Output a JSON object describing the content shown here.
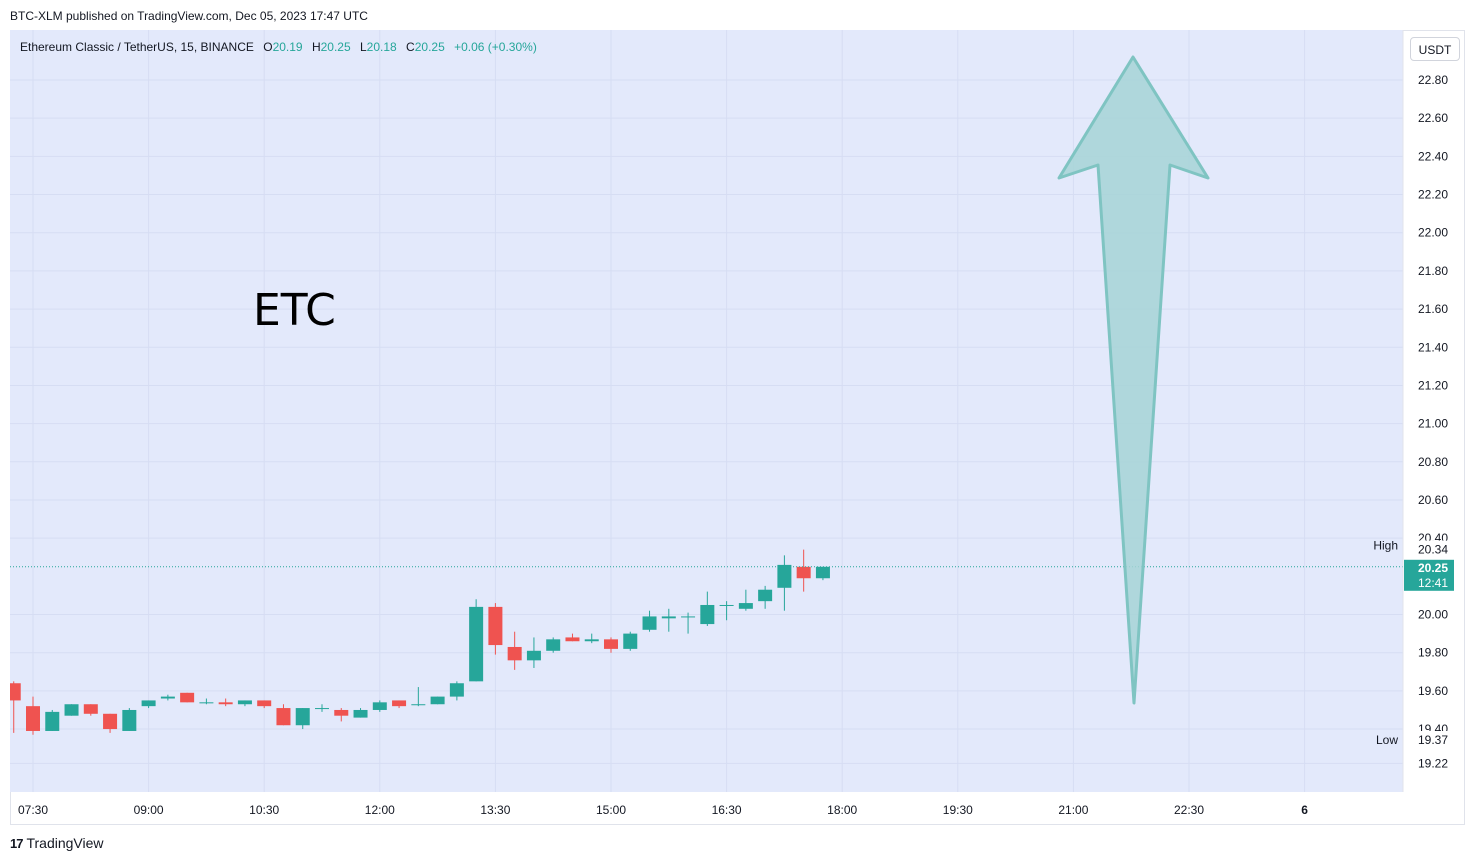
{
  "header": {
    "published_text": "BTC-XLM published on TradingView.com, Dec 05, 2023 17:47 UTC"
  },
  "legend": {
    "symbol_text": "Ethereum Classic / TetherUS, 15, BINANCE",
    "o_label": "O",
    "o_value": "20.19",
    "h_label": "H",
    "h_value": "20.25",
    "l_label": "L",
    "l_value": "20.18",
    "c_label": "C",
    "c_value": "20.25",
    "change_text": "+0.06 (+0.30%)"
  },
  "currency_button": {
    "label": "USDT"
  },
  "annotation": {
    "text": "ETC"
  },
  "footer": {
    "brand_label": "TradingView",
    "logo_glyph": "17"
  },
  "colors": {
    "up": "#26a69a",
    "down": "#ef5350",
    "plot_bg": "#e3e9fb",
    "arrow_fill": "#a6d3d6",
    "arrow_stroke": "#7fc4c2",
    "price_line": "#26a69a"
  },
  "chart_data": {
    "type": "candlestick",
    "timeframe": "15",
    "y_axis_ticks": [
      "22.80",
      "22.60",
      "22.40",
      "22.20",
      "22.00",
      "21.80",
      "21.60",
      "21.40",
      "21.20",
      "21.00",
      "20.80",
      "20.60",
      "20.40",
      "20.00",
      "19.80",
      "19.60",
      "19.40",
      "19.22"
    ],
    "x_axis_ticks": [
      "07:30",
      "09:00",
      "10:30",
      "12:00",
      "13:30",
      "15:00",
      "16:30",
      "18:00",
      "19:30",
      "21:00",
      "22:30",
      "6"
    ],
    "ylim": [
      19.1,
      22.95
    ],
    "price_labels": {
      "high": {
        "label": "High",
        "value": "20.34"
      },
      "current": {
        "value": "20.25",
        "countdown": "12:41"
      },
      "low": {
        "label": "Low",
        "value": "19.37"
      }
    },
    "candles": [
      {
        "t": "07:15",
        "o": 19.64,
        "h": 19.65,
        "l": 19.38,
        "c": 19.55
      },
      {
        "t": "07:30",
        "o": 19.52,
        "h": 19.57,
        "l": 19.37,
        "c": 19.39
      },
      {
        "t": "07:45",
        "o": 19.39,
        "h": 19.5,
        "l": 19.39,
        "c": 19.49
      },
      {
        "t": "08:00",
        "o": 19.47,
        "h": 19.53,
        "l": 19.47,
        "c": 19.53
      },
      {
        "t": "08:15",
        "o": 19.53,
        "h": 19.53,
        "l": 19.47,
        "c": 19.48
      },
      {
        "t": "08:30",
        "o": 19.48,
        "h": 19.48,
        "l": 19.38,
        "c": 19.4
      },
      {
        "t": "08:45",
        "o": 19.39,
        "h": 19.51,
        "l": 19.39,
        "c": 19.5
      },
      {
        "t": "09:00",
        "o": 19.52,
        "h": 19.55,
        "l": 19.51,
        "c": 19.55
      },
      {
        "t": "09:15",
        "o": 19.56,
        "h": 19.58,
        "l": 19.55,
        "c": 19.57
      },
      {
        "t": "09:30",
        "o": 19.59,
        "h": 19.59,
        "l": 19.54,
        "c": 19.54
      },
      {
        "t": "09:45",
        "o": 19.54,
        "h": 19.56,
        "l": 19.53,
        "c": 19.54
      },
      {
        "t": "10:00",
        "o": 19.54,
        "h": 19.56,
        "l": 19.52,
        "c": 19.53
      },
      {
        "t": "10:15",
        "o": 19.53,
        "h": 19.55,
        "l": 19.52,
        "c": 19.55
      },
      {
        "t": "10:30",
        "o": 19.55,
        "h": 19.55,
        "l": 19.51,
        "c": 19.52
      },
      {
        "t": "10:45",
        "o": 19.51,
        "h": 19.53,
        "l": 19.42,
        "c": 19.42
      },
      {
        "t": "11:00",
        "o": 19.42,
        "h": 19.51,
        "l": 19.4,
        "c": 19.51
      },
      {
        "t": "11:15",
        "o": 19.51,
        "h": 19.53,
        "l": 19.49,
        "c": 19.51
      },
      {
        "t": "11:30",
        "o": 19.5,
        "h": 19.51,
        "l": 19.44,
        "c": 19.47
      },
      {
        "t": "11:45",
        "o": 19.46,
        "h": 19.51,
        "l": 19.46,
        "c": 19.5
      },
      {
        "t": "12:00",
        "o": 19.5,
        "h": 19.55,
        "l": 19.49,
        "c": 19.54
      },
      {
        "t": "12:15",
        "o": 19.55,
        "h": 19.55,
        "l": 19.51,
        "c": 19.52
      },
      {
        "t": "12:30",
        "o": 19.53,
        "h": 19.62,
        "l": 19.52,
        "c": 19.53
      },
      {
        "t": "12:45",
        "o": 19.53,
        "h": 19.57,
        "l": 19.53,
        "c": 19.57
      },
      {
        "t": "13:00",
        "o": 19.57,
        "h": 19.65,
        "l": 19.55,
        "c": 19.64
      },
      {
        "t": "13:15",
        "o": 19.65,
        "h": 20.08,
        "l": 19.65,
        "c": 20.04
      },
      {
        "t": "13:30",
        "o": 20.04,
        "h": 20.06,
        "l": 19.79,
        "c": 19.84
      },
      {
        "t": "13:45",
        "o": 19.83,
        "h": 19.91,
        "l": 19.71,
        "c": 19.76
      },
      {
        "t": "14:00",
        "o": 19.76,
        "h": 19.88,
        "l": 19.72,
        "c": 19.81
      },
      {
        "t": "14:15",
        "o": 19.81,
        "h": 19.88,
        "l": 19.8,
        "c": 19.87
      },
      {
        "t": "14:30",
        "o": 19.88,
        "h": 19.9,
        "l": 19.86,
        "c": 19.86
      },
      {
        "t": "14:45",
        "o": 19.86,
        "h": 19.9,
        "l": 19.85,
        "c": 19.87
      },
      {
        "t": "15:00",
        "o": 19.87,
        "h": 19.88,
        "l": 19.8,
        "c": 19.82
      },
      {
        "t": "15:15",
        "o": 19.82,
        "h": 19.91,
        "l": 19.81,
        "c": 19.9
      },
      {
        "t": "15:30",
        "o": 19.92,
        "h": 20.02,
        "l": 19.91,
        "c": 19.99
      },
      {
        "t": "15:45",
        "o": 19.98,
        "h": 20.03,
        "l": 19.91,
        "c": 19.99
      },
      {
        "t": "16:00",
        "o": 19.99,
        "h": 20.01,
        "l": 19.9,
        "c": 19.99
      },
      {
        "t": "16:15",
        "o": 19.95,
        "h": 20.12,
        "l": 19.94,
        "c": 20.05
      },
      {
        "t": "16:30",
        "o": 20.05,
        "h": 20.07,
        "l": 19.97,
        "c": 20.05
      },
      {
        "t": "16:45",
        "o": 20.03,
        "h": 20.13,
        "l": 20.02,
        "c": 20.06
      },
      {
        "t": "17:00",
        "o": 20.07,
        "h": 20.15,
        "l": 20.03,
        "c": 20.13
      },
      {
        "t": "17:15",
        "o": 20.14,
        "h": 20.31,
        "l": 20.02,
        "c": 20.26
      },
      {
        "t": "17:30",
        "o": 20.25,
        "h": 20.34,
        "l": 20.12,
        "c": 20.19
      },
      {
        "t": "17:45",
        "o": 20.19,
        "h": 20.25,
        "l": 20.18,
        "c": 20.25
      }
    ]
  }
}
